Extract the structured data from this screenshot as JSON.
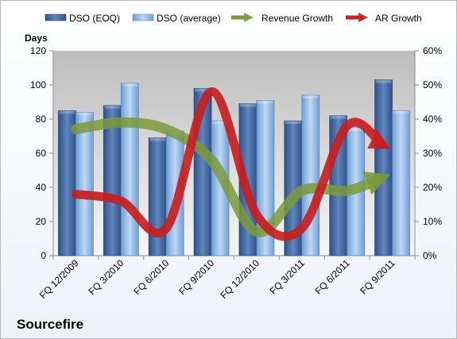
{
  "chart_data": {
    "type": "bar",
    "title": "",
    "company_label": "Sourcefire",
    "ylabel": "Days",
    "ylim": [
      0,
      120
    ],
    "yticks": [
      0,
      20,
      40,
      60,
      80,
      100,
      120
    ],
    "y2lim": [
      0,
      0.6
    ],
    "y2ticks": [
      "0%",
      "10%",
      "20%",
      "30%",
      "40%",
      "50%",
      "60%"
    ],
    "categories": [
      "FQ 12/2009",
      "FQ 3/2010",
      "FQ 6/2010",
      "FQ 9/2010",
      "FQ 12/2010",
      "FQ 3/2011",
      "FQ 6/2011",
      "FQ 9/2011"
    ],
    "series": [
      {
        "name": "DSO (EOQ)",
        "type": "bar",
        "axis": "left",
        "values": [
          85,
          88,
          69,
          98,
          89,
          79,
          82,
          103
        ]
      },
      {
        "name": "DSO (average)",
        "type": "bar",
        "axis": "left",
        "values": [
          84,
          101,
          73,
          79,
          91,
          94,
          75,
          85
        ]
      },
      {
        "name": "Revenue Growth",
        "type": "line",
        "axis": "right",
        "values": [
          0.37,
          0.39,
          0.37,
          0.28,
          0.07,
          0.19,
          0.19,
          0.24
        ]
      },
      {
        "name": "AR Growth",
        "type": "line",
        "axis": "right",
        "values": [
          0.18,
          0.16,
          0.08,
          0.48,
          0.12,
          0.08,
          0.38,
          0.31
        ]
      }
    ],
    "legend": "top",
    "grid": false,
    "colors": {
      "dso_eoq": "#4a6fa5",
      "dso_avg": "#9ec3ea",
      "revenue_growth": "#7a9a3a",
      "ar_growth": "#c81e1e",
      "plot_background": "#c8c8c8"
    }
  }
}
